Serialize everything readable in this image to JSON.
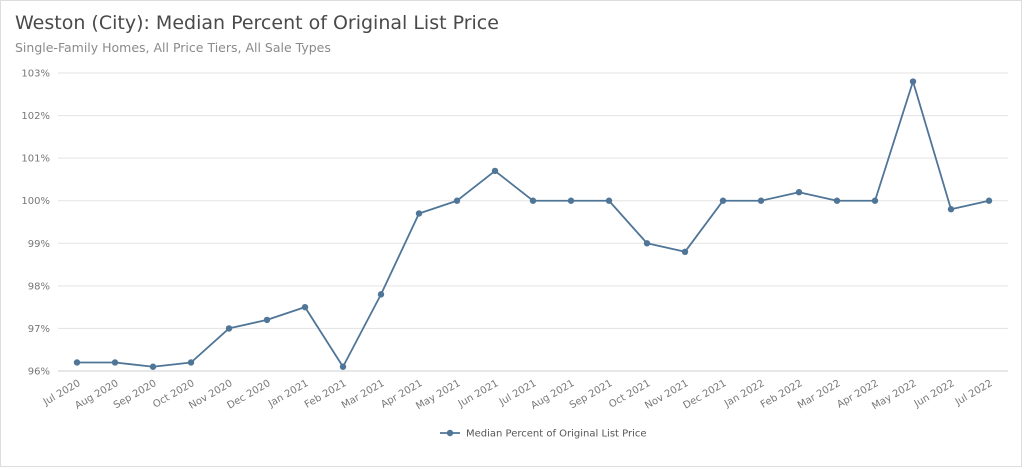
{
  "chart_data": {
    "type": "line",
    "title": "Weston (City): Median Percent of Original List Price",
    "subtitle": "Single-Family Homes, All Price Tiers, All Sale Types",
    "xlabel": "",
    "ylabel": "",
    "categories": [
      "Jul 2020",
      "Aug 2020",
      "Sep 2020",
      "Oct 2020",
      "Nov 2020",
      "Dec 2020",
      "Jan 2021",
      "Feb 2021",
      "Mar 2021",
      "Apr 2021",
      "May 2021",
      "Jun 2021",
      "Jul 2021",
      "Aug 2021",
      "Sep 2021",
      "Oct 2021",
      "Nov 2021",
      "Dec 2021",
      "Jan 2022",
      "Feb 2022",
      "Mar 2022",
      "Apr 2022",
      "May 2022",
      "Jun 2022",
      "Jul 2022"
    ],
    "series": [
      {
        "name": "Median Percent of Original List Price",
        "color": "#4f7597",
        "values": [
          96.2,
          96.2,
          96.1,
          96.2,
          97.0,
          97.2,
          97.5,
          96.1,
          97.8,
          99.7,
          100.0,
          100.7,
          100.0,
          100.0,
          100.0,
          99.0,
          98.8,
          100.0,
          100.0,
          100.2,
          100.0,
          100.0,
          102.8,
          99.8,
          100.0
        ]
      }
    ],
    "ylim": [
      96,
      103
    ],
    "yticks": [
      96,
      97,
      98,
      99,
      100,
      101,
      102,
      103
    ],
    "ytick_labels": [
      "96%",
      "97%",
      "98%",
      "99%",
      "100%",
      "101%",
      "102%",
      "103%"
    ],
    "grid": true,
    "legend_position": "bottom-center"
  }
}
